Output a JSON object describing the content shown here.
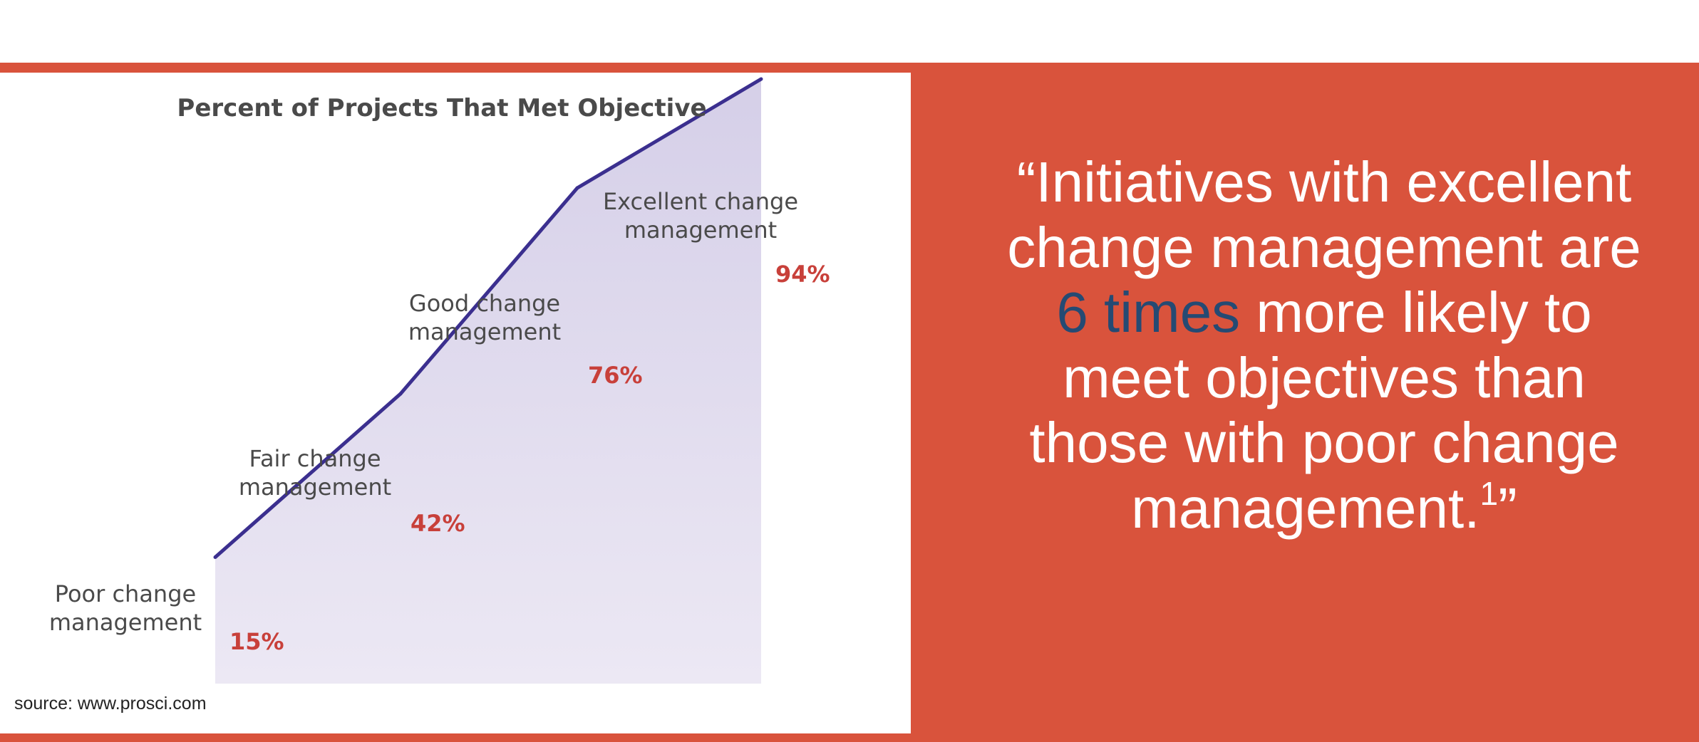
{
  "chart_data": {
    "type": "area",
    "title": "Percent of Projects That Met Objective",
    "categories": [
      "Poor change\nmanagement",
      "Fair change\nmanagement",
      "Good change\nmanagement",
      "Excellent change\nmanagement"
    ],
    "values": [
      15,
      42,
      76,
      94
    ],
    "value_labels": [
      "15%",
      "42%",
      "76%",
      "94%"
    ],
    "line_color": "#3b2f8f",
    "fill_color": "#d8d3ea",
    "label_color": "#c8403a",
    "xlabel": "",
    "ylabel": "",
    "grid": false
  },
  "source": "source: www.prosci.com",
  "quote": {
    "open_quote": "“",
    "text_before": "Initiatives with excellent change management are ",
    "highlight": "6 times",
    "text_after": " more likely to meet objectives than those with poor change management.",
    "footnote": "1",
    "close_quote": "”",
    "highlight_color": "#254a73"
  },
  "colors": {
    "accent_red": "#d9533c",
    "text_white": "#ffffff"
  }
}
